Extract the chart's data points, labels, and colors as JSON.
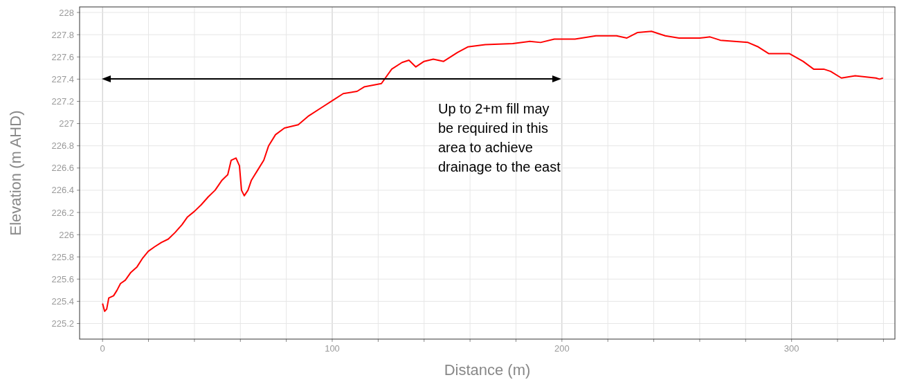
{
  "chart_data": {
    "type": "line",
    "xlabel": "Distance (m)",
    "ylabel": "Elevation (m AHD)",
    "x": [
      0,
      0.9,
      1.8,
      2.7,
      4.8,
      6.3,
      7.8,
      9.9,
      12.3,
      15,
      17.5,
      19.9,
      22.6,
      25.6,
      28.6,
      31.6,
      34.6,
      37,
      40,
      43,
      46,
      49,
      52,
      54.5,
      56,
      58.1,
      59.6,
      60.5,
      61.7,
      63.3,
      64.8,
      67.8,
      70.2,
      72.3,
      75.3,
      79.2,
      85.2,
      89.8,
      95.8,
      100.3,
      104.8,
      110.8,
      113.9,
      121.4,
      125.9,
      130.4,
      133.4,
      136.4,
      140,
      144,
      148.5,
      154.5,
      159,
      166.6,
      178.6,
      186,
      190.7,
      196.7,
      205.7,
      214.8,
      223.8,
      228.3,
      233,
      239,
      245,
      251,
      260,
      264.5,
      269,
      275,
      281,
      285.5,
      290,
      299,
      305,
      309.6,
      314,
      317,
      321.7,
      327.7,
      336.7,
      338.3,
      339.8
    ],
    "series": [
      {
        "color": "#ff0000",
        "values": [
          225.38,
          225.31,
          225.33,
          225.43,
          225.45,
          225.5,
          225.56,
          225.59,
          225.66,
          225.71,
          225.79,
          225.85,
          225.89,
          225.93,
          225.96,
          226.02,
          226.09,
          226.16,
          226.21,
          226.27,
          226.34,
          226.4,
          226.49,
          226.54,
          226.67,
          226.69,
          226.62,
          226.4,
          226.35,
          226.4,
          226.49,
          226.59,
          226.67,
          226.8,
          226.9,
          226.96,
          226.99,
          227.07,
          227.15,
          227.21,
          227.27,
          227.29,
          227.33,
          227.36,
          227.49,
          227.55,
          227.57,
          227.51,
          227.56,
          227.58,
          227.56,
          227.64,
          227.69,
          227.71,
          227.72,
          227.74,
          227.73,
          227.76,
          227.76,
          227.79,
          227.79,
          227.77,
          227.82,
          227.83,
          227.79,
          227.77,
          227.77,
          227.78,
          227.75,
          227.74,
          227.73,
          227.69,
          227.63,
          227.63,
          227.56,
          227.49,
          227.49,
          227.47,
          227.41,
          227.43,
          227.41,
          227.4,
          227.41
        ]
      }
    ],
    "xlim": [
      -10,
      345
    ],
    "ylim": [
      225.06,
      228.05
    ],
    "xticks": [
      0,
      {
        "value": 20,
        "label": null
      },
      {
        "value": 40,
        "label": null
      },
      {
        "value": 60,
        "label": null
      },
      {
        "value": 80,
        "label": null
      },
      100,
      {
        "value": 120,
        "label": null
      },
      {
        "value": 140,
        "label": null
      },
      {
        "value": 160,
        "label": null
      },
      {
        "value": 180,
        "label": null
      },
      200,
      {
        "value": 220,
        "label": null
      },
      {
        "value": 240,
        "label": null
      },
      {
        "value": 260,
        "label": null
      },
      {
        "value": 280,
        "label": null
      },
      300,
      {
        "value": 320,
        "label": null
      },
      {
        "value": 340,
        "label": null
      }
    ],
    "yticks": [
      {
        "value": 225.2,
        "label": "225.2"
      },
      {
        "value": 225.4,
        "label": "225.4"
      },
      {
        "value": 225.6,
        "label": "225.6"
      },
      {
        "value": 225.8,
        "label": "225.8"
      },
      226,
      {
        "value": 226.2,
        "label": "226.2"
      },
      {
        "value": 226.4,
        "label": "226.4"
      },
      {
        "value": 226.6,
        "label": "226.6"
      },
      {
        "value": 226.8,
        "label": "226.8"
      },
      227,
      {
        "value": 227.2,
        "label": "227.2"
      },
      {
        "value": 227.4,
        "label": "227.4"
      },
      {
        "value": 227.6,
        "label": "227.6"
      },
      {
        "value": 227.8,
        "label": "227.8"
      },
      228
    ],
    "grid": true,
    "marker": "none",
    "line_style": "solid",
    "annotations": [
      "Up to 2+m fill may\nbe required in this\narea to achieve\ndrainage to the east"
    ]
  }
}
